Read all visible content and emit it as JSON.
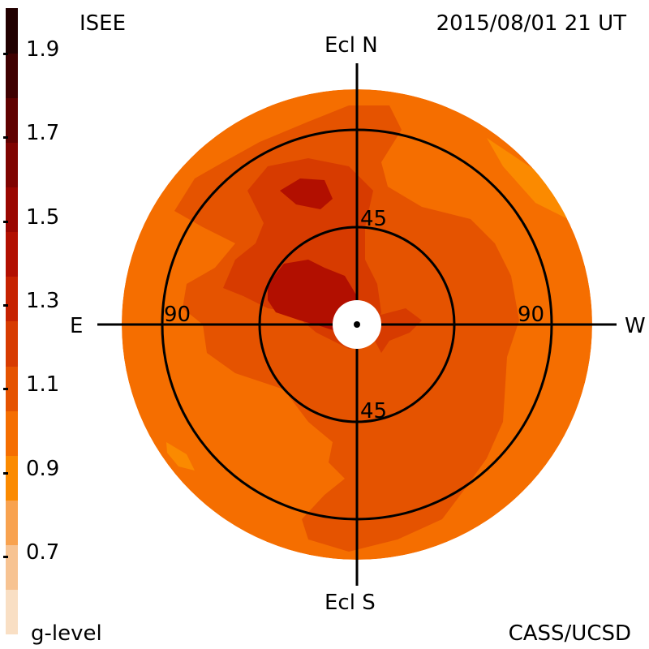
{
  "header": {
    "left_label": "ISEE",
    "timestamp": "2015/08/01 21 UT"
  },
  "footer": {
    "colorbar_label": "g-level",
    "credit": "CASS/UCSD"
  },
  "axes": {
    "north": "Ecl N",
    "south": "Ecl S",
    "east": "E",
    "west": "W",
    "ring_inner_top": "45",
    "ring_inner_bottom": "45",
    "ring_outer_left": "90",
    "ring_outer_right": "90"
  },
  "colorbar": {
    "tick_labels": [
      "1.9",
      "1.7",
      "1.5",
      "1.3",
      "1.1",
      "0.9",
      "0.7"
    ],
    "colors": [
      "#f9dfc4",
      "#f7c392",
      "#f8a24f",
      "#fb8a00",
      "#f56e00",
      "#e55300",
      "#d73b00",
      "#c62200",
      "#b20f00",
      "#9a0600",
      "#7f0300",
      "#600100",
      "#3f0000",
      "#210000"
    ]
  },
  "map": {
    "colors": {
      "base": "#f56e00",
      "mid": "#e55300",
      "high": "#d73b00",
      "peak": "#b20f00",
      "low": "#fb8a00"
    }
  }
}
